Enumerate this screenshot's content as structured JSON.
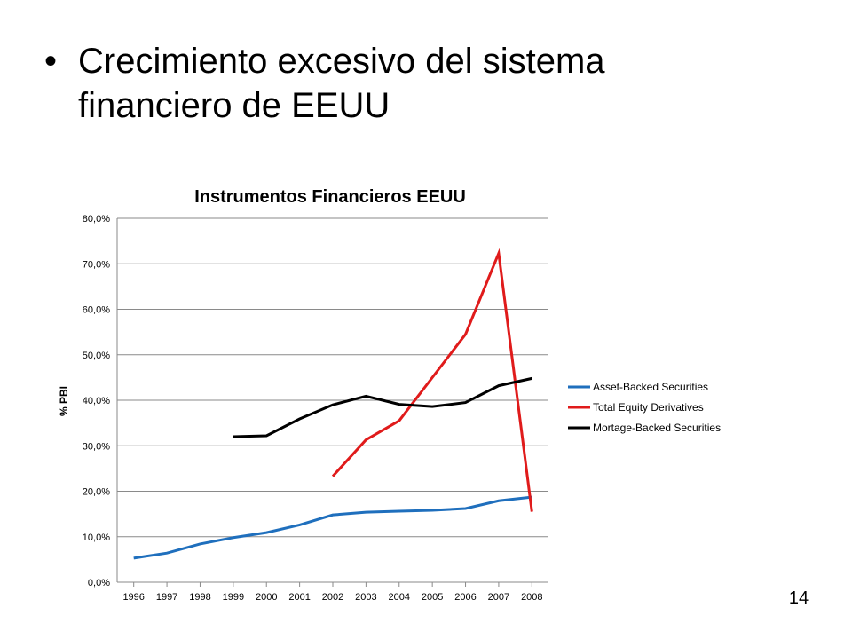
{
  "slide": {
    "bullet_symbol": "•",
    "bullet_text": "Crecimiento excesivo del sistema financiero de EEUU",
    "page_number": "14"
  },
  "chart_data": {
    "type": "line",
    "title": "Instrumentos Financieros EEUU",
    "xlabel": "",
    "ylabel": "% PBI",
    "categories": [
      "1996",
      "1997",
      "1998",
      "1999",
      "2000",
      "2001",
      "2002",
      "2003",
      "2004",
      "2005",
      "2006",
      "2007",
      "2008"
    ],
    "y_ticks": [
      "0,0%",
      "10,0%",
      "20,0%",
      "30,0%",
      "40,0%",
      "50,0%",
      "60,0%",
      "70,0%",
      "80,0%"
    ],
    "ylim": [
      0,
      80
    ],
    "grid": true,
    "legend_position": "right",
    "series": [
      {
        "name": "Asset-Backed Securities",
        "color": "#1f6fbd",
        "values": [
          5.3,
          6.4,
          8.4,
          9.8,
          10.9,
          12.6,
          14.8,
          15.4,
          15.6,
          15.8,
          16.2,
          17.9,
          18.7
        ]
      },
      {
        "name": "Total Equity Derivatives",
        "color": "#e01b1b",
        "values": [
          null,
          null,
          null,
          null,
          null,
          null,
          23.3,
          31.3,
          35.5,
          45.0,
          54.5,
          72.3,
          15.5
        ]
      },
      {
        "name": "Mortage-Backed Securities",
        "color": "#000000",
        "values": [
          null,
          null,
          null,
          32.0,
          32.2,
          35.9,
          39.0,
          40.9,
          39.1,
          38.6,
          39.5,
          43.2,
          44.8
        ]
      }
    ]
  }
}
